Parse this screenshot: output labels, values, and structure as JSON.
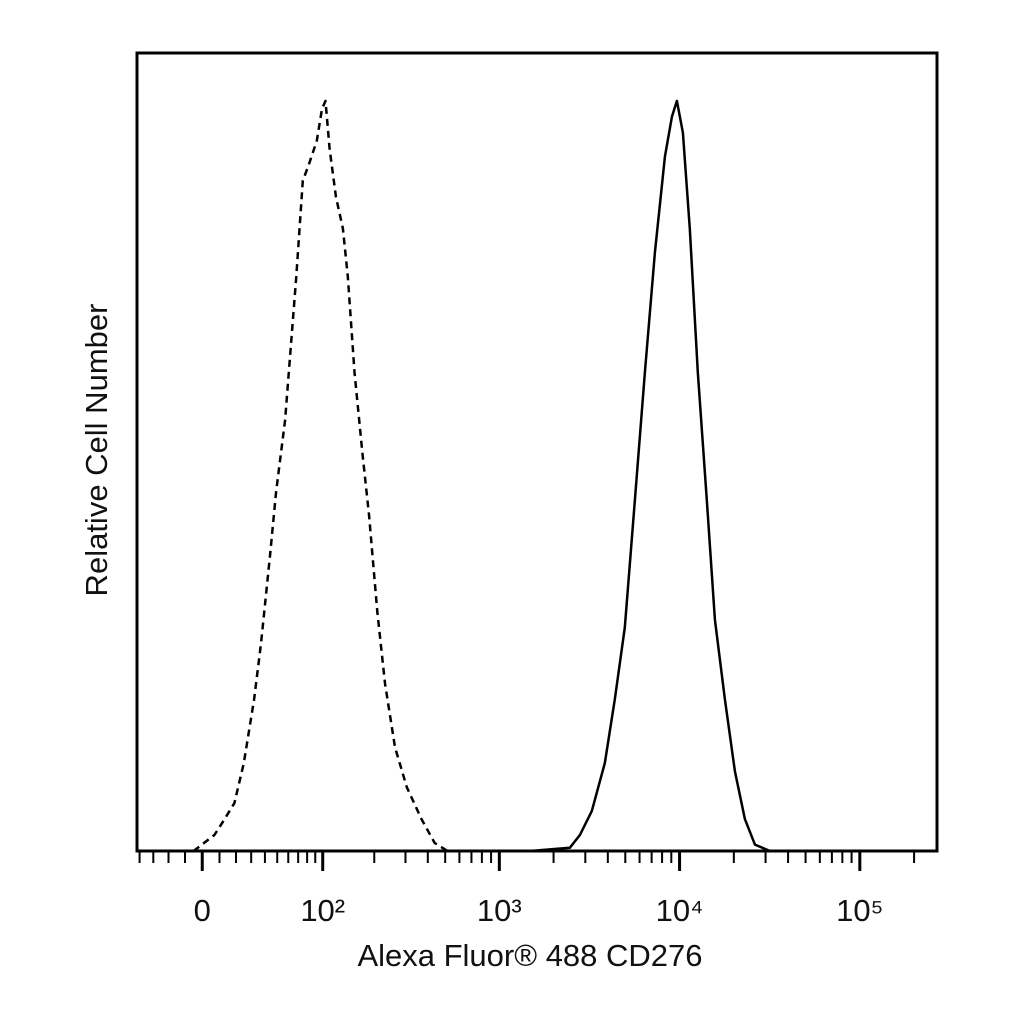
{
  "chart_data": {
    "type": "line",
    "x_label": "Alexa Fluor® 488 CD276",
    "y_label": "Relative Cell Number",
    "xscale": "biexponential",
    "xlim": [
      -42,
      268000
    ],
    "ylim": [
      0,
      100
    ],
    "xticks": [
      0,
      {
        "value": 100,
        "label": "10²"
      },
      {
        "value": 1000,
        "label": "10³"
      },
      {
        "value": 10000,
        "label": "10⁴"
      },
      {
        "value": 100000,
        "label": "10⁵"
      }
    ],
    "xminorticks": [
      -40,
      -30,
      -20,
      -10,
      10,
      20,
      30,
      40,
      50,
      60,
      70,
      80,
      90,
      200,
      300,
      400,
      500,
      600,
      700,
      800,
      900,
      2000,
      3000,
      4000,
      5000,
      6000,
      7000,
      8000,
      9000,
      20000,
      30000,
      40000,
      50000,
      60000,
      70000,
      80000,
      90000,
      200000
    ],
    "series": [
      {
        "color": "#000000",
        "linestyle": "dashed",
        "x": [
          -5,
          1,
          7,
          13,
          19,
          25,
          32,
          37,
          44,
          49,
          57,
          63,
          68,
          75,
          82,
          92,
          99,
          104,
          110,
          120,
          132,
          141,
          154,
          171,
          187,
          208,
          230,
          262,
          305,
          369,
          437,
          516
        ],
        "values": [
          0,
          1,
          2,
          4,
          6,
          11,
          19,
          26,
          37,
          45,
          54,
          64,
          72,
          84,
          86,
          89,
          93,
          94,
          88,
          82,
          78,
          72,
          60,
          50,
          42,
          30,
          21,
          13,
          8,
          4,
          1,
          0
        ]
      },
      {
        "color": "#000000",
        "linestyle": "solid",
        "x": [
          1480,
          2460,
          2800,
          3260,
          3850,
          4370,
          4970,
          5650,
          6420,
          7300,
          8290,
          9070,
          9670,
          10440,
          11400,
          12630,
          14170,
          15700,
          17840,
          20270,
          23040,
          26190,
          31740
        ],
        "values": [
          0,
          0.4,
          2,
          5,
          11,
          19,
          28,
          44,
          60,
          75,
          87,
          92,
          94,
          90,
          78,
          60,
          44,
          29,
          19,
          10,
          4,
          0.8,
          0
        ]
      }
    ]
  }
}
